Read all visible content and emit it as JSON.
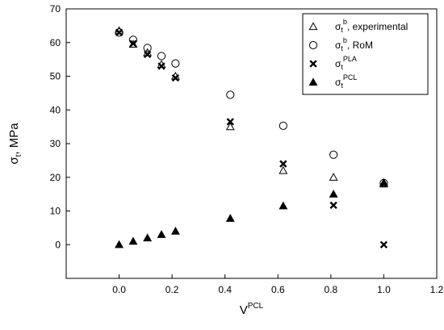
{
  "chart_data": {
    "type": "scatter",
    "xlabel": {
      "main": "V",
      "sup": "PCL"
    },
    "ylabel": {
      "main": "σ",
      "sub": "t",
      "rest": ", MPa"
    },
    "xlim": [
      -0.2,
      1.2
    ],
    "ylim": [
      -10,
      70
    ],
    "xticks": [
      "0.0",
      "0.2",
      "0.4",
      "0.6",
      "0.8",
      "1.0",
      "1.2"
    ],
    "yticks": [
      "0",
      "10",
      "20",
      "30",
      "40",
      "50",
      "60",
      "70"
    ],
    "xtick_values": [
      0,
      0.2,
      0.4,
      0.6,
      0.8,
      1.0,
      1.2
    ],
    "ytick_values": [
      0,
      10,
      20,
      30,
      40,
      50,
      60,
      70
    ],
    "grid": false,
    "legend_position": "top-right",
    "series": [
      {
        "name": "σtb, experimental",
        "label": {
          "main": "σ",
          "sub": "t",
          "sup": "b",
          "rest": ", experimental"
        },
        "marker": "open-triangle",
        "x": [
          0.0,
          0.053,
          0.107,
          0.16,
          0.213,
          0.42,
          0.62,
          0.81,
          1.0
        ],
        "y": [
          63.5,
          59.5,
          57.0,
          53.5,
          50.0,
          35.0,
          22.0,
          20.0,
          18.0
        ]
      },
      {
        "name": "σtb, RoM",
        "label": {
          "main": "σ",
          "sub": "t",
          "sup": "b",
          "rest": ", RoM"
        },
        "marker": "open-circle",
        "x": [
          0.0,
          0.053,
          0.107,
          0.16,
          0.213,
          0.42,
          0.62,
          0.81,
          1.0
        ],
        "y": [
          63.0,
          60.8,
          58.4,
          56.0,
          53.8,
          44.5,
          35.3,
          26.7,
          18.3
        ]
      },
      {
        "name": "σtPLA",
        "label": {
          "main": "σ",
          "sub": "t",
          "sup": "PLA",
          "rest": ""
        },
        "marker": "x",
        "x": [
          0.0,
          0.053,
          0.107,
          0.16,
          0.213,
          0.42,
          0.62,
          0.81,
          1.0
        ],
        "y": [
          63.0,
          59.7,
          56.5,
          53.0,
          49.5,
          36.5,
          24.0,
          11.7,
          0.0
        ]
      },
      {
        "name": "σtPCL",
        "label": {
          "main": "σ",
          "sub": "t",
          "sup": "PCL",
          "rest": ""
        },
        "marker": "filled-triangle",
        "x": [
          0.0,
          0.053,
          0.107,
          0.16,
          0.213,
          0.42,
          0.62,
          0.81,
          1.0
        ],
        "y": [
          0.0,
          1.0,
          2.0,
          3.0,
          4.0,
          7.8,
          11.5,
          15.0,
          18.4
        ]
      }
    ]
  }
}
